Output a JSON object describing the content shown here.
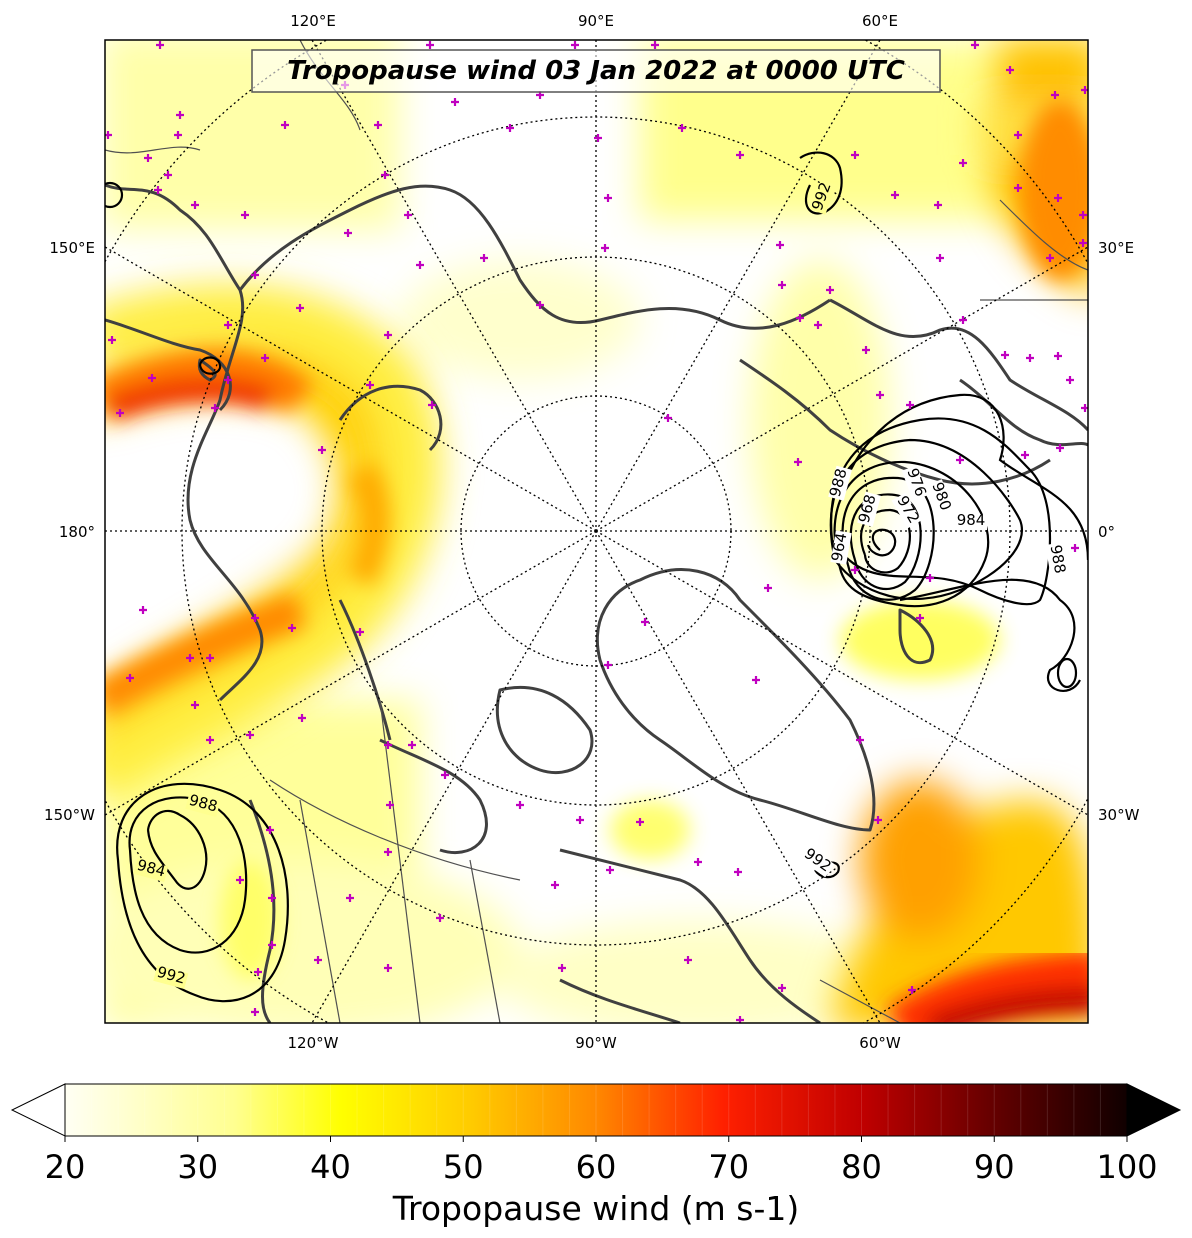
{
  "title": "Tropopause wind 03 Jan 2022 at 0000 UTC",
  "top_lon_labels": [
    "120°E",
    "90°E",
    "60°E"
  ],
  "bottom_lon_labels": [
    "120°W",
    "90°W",
    "60°W"
  ],
  "left_lon_labels": [
    "150°E",
    "180°",
    "150°W"
  ],
  "right_lon_labels": [
    "30°E",
    "0°",
    "30°W"
  ],
  "colorbar": {
    "label": "Tropopause wind (m s-1)",
    "ticks": [
      "20",
      "30",
      "40",
      "50",
      "60",
      "70",
      "80",
      "90",
      "100"
    ],
    "min": 20,
    "max": 100,
    "extend": "both"
  },
  "contours": {
    "units": "hPa",
    "labels": [
      "992",
      "976",
      "980",
      "984",
      "972",
      "968",
      "988",
      "964",
      "988",
      "984",
      "992",
      "992",
      "988"
    ]
  },
  "colors": {
    "marker": "#c000c0",
    "coastline": "#404040",
    "grid": "#000000"
  }
}
